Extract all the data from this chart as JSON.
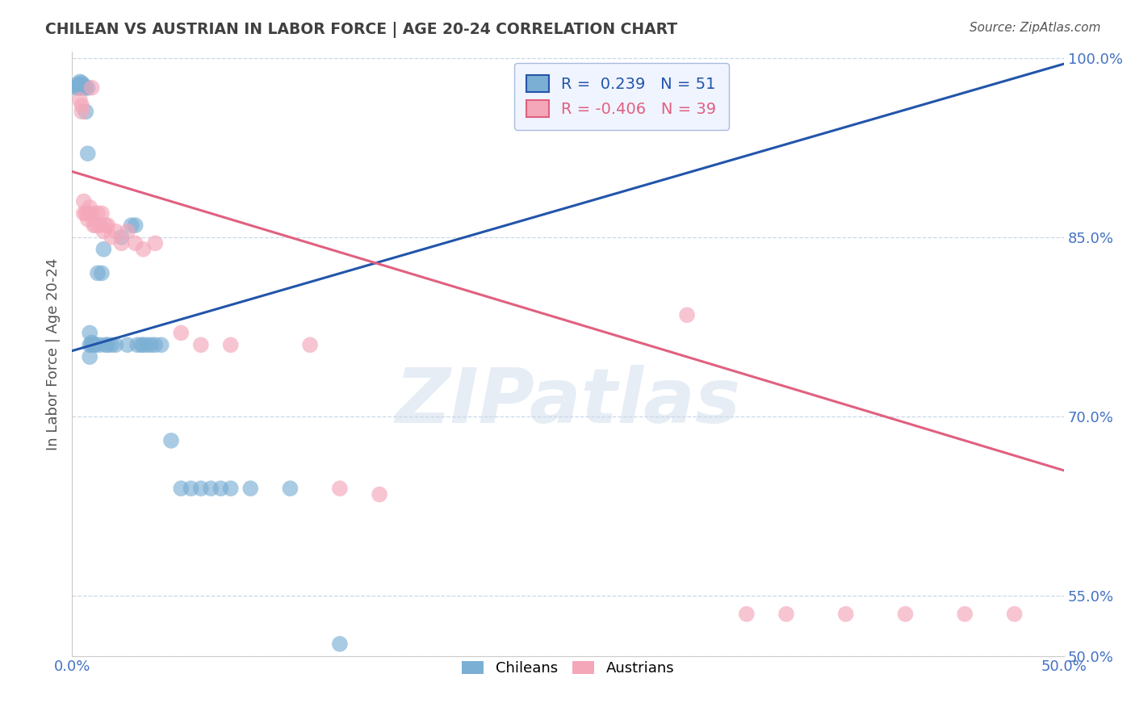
{
  "title": "CHILEAN VS AUSTRIAN IN LABOR FORCE | AGE 20-24 CORRELATION CHART",
  "source": "Source: ZipAtlas.com",
  "ylabel": "In Labor Force | Age 20-24",
  "xlim": [
    0.0,
    0.5
  ],
  "ylim": [
    0.5,
    1.005
  ],
  "yticks": [
    0.5,
    0.55,
    0.7,
    0.85,
    1.0
  ],
  "ytick_labels": [
    "50.0%",
    "55.0%",
    "70.0%",
    "85.0%",
    "100.0%"
  ],
  "xtick_labels": [
    "0.0%",
    "",
    "",
    "",
    "",
    "50.0%"
  ],
  "chilean_color": "#7bafd4",
  "austrian_color": "#f4a7b9",
  "chilean_line_color": "#2255aa",
  "austrian_line_color": "#e06080",
  "R_chilean": 0.239,
  "N_chilean": 51,
  "R_austrian": -0.406,
  "N_austrian": 39,
  "chilean_line_x": [
    0.0,
    0.5
  ],
  "chilean_line_y": [
    0.755,
    0.995
  ],
  "austrian_line_x": [
    0.0,
    0.5
  ],
  "austrian_line_y": [
    0.905,
    0.655
  ],
  "chilean_x": [
    0.002,
    0.003,
    0.003,
    0.004,
    0.004,
    0.004,
    0.005,
    0.005,
    0.005,
    0.006,
    0.006,
    0.007,
    0.007,
    0.008,
    0.008,
    0.009,
    0.009,
    0.009,
    0.01,
    0.01,
    0.011,
    0.012,
    0.013,
    0.014,
    0.015,
    0.016,
    0.017,
    0.018,
    0.02,
    0.022,
    0.025,
    0.028,
    0.03,
    0.032,
    0.033,
    0.035,
    0.036,
    0.038,
    0.04,
    0.042,
    0.045,
    0.05,
    0.055,
    0.06,
    0.065,
    0.07,
    0.075,
    0.08,
    0.09,
    0.11,
    0.135
  ],
  "chilean_y": [
    0.975,
    0.975,
    0.978,
    0.975,
    0.977,
    0.98,
    0.975,
    0.977,
    0.979,
    0.975,
    0.977,
    0.955,
    0.975,
    0.92,
    0.975,
    0.75,
    0.76,
    0.77,
    0.76,
    0.762,
    0.76,
    0.76,
    0.82,
    0.76,
    0.82,
    0.84,
    0.76,
    0.76,
    0.76,
    0.76,
    0.85,
    0.76,
    0.86,
    0.86,
    0.76,
    0.76,
    0.76,
    0.76,
    0.76,
    0.76,
    0.76,
    0.68,
    0.64,
    0.64,
    0.64,
    0.64,
    0.64,
    0.64,
    0.64,
    0.64,
    0.51
  ],
  "austrian_x": [
    0.004,
    0.005,
    0.005,
    0.006,
    0.006,
    0.007,
    0.008,
    0.008,
    0.009,
    0.01,
    0.01,
    0.011,
    0.012,
    0.013,
    0.014,
    0.015,
    0.016,
    0.017,
    0.018,
    0.02,
    0.022,
    0.025,
    0.028,
    0.032,
    0.036,
    0.042,
    0.055,
    0.065,
    0.08,
    0.12,
    0.135,
    0.155,
    0.31,
    0.34,
    0.36,
    0.39,
    0.42,
    0.45,
    0.475
  ],
  "austrian_y": [
    0.965,
    0.955,
    0.96,
    0.87,
    0.88,
    0.87,
    0.865,
    0.87,
    0.875,
    0.975,
    0.87,
    0.86,
    0.86,
    0.87,
    0.86,
    0.87,
    0.855,
    0.86,
    0.86,
    0.85,
    0.855,
    0.845,
    0.855,
    0.845,
    0.84,
    0.845,
    0.77,
    0.76,
    0.76,
    0.76,
    0.64,
    0.635,
    0.785,
    0.535,
    0.535,
    0.535,
    0.535,
    0.535,
    0.535
  ],
  "watermark_text": "ZIPatlas",
  "background_color": "#ffffff",
  "grid_color": "#c8d8e8",
  "title_color": "#404040",
  "tick_color": "#4472c4",
  "source_color": "#555555"
}
